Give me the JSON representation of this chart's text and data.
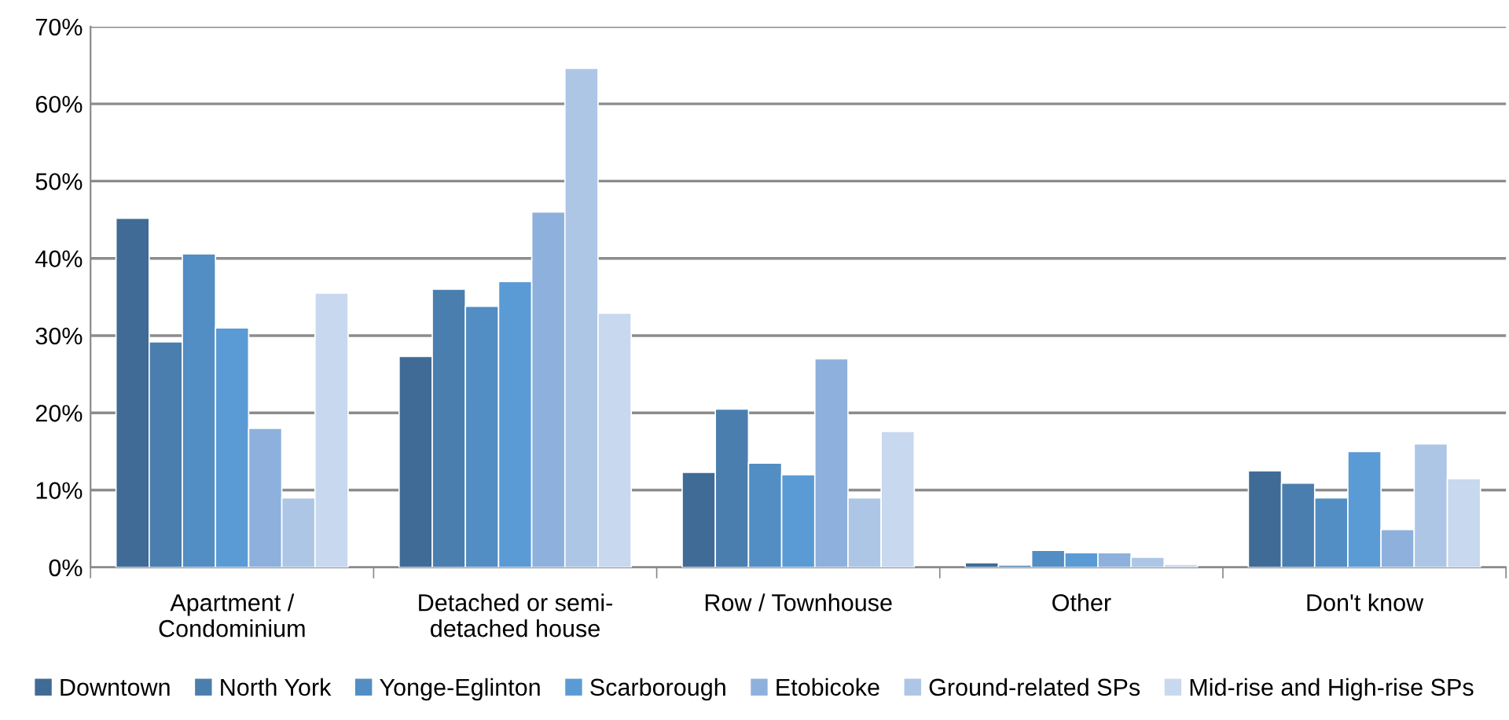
{
  "chart_data": {
    "type": "bar",
    "categories": [
      "Apartment /\nCondominium",
      "Detached or semi-\ndetached house",
      "Row / Townhouse",
      "Other",
      "Don't know"
    ],
    "series": [
      {
        "name": "Downtown",
        "color": "#3f6b96",
        "values": [
          45.2,
          27.3,
          12.3,
          0.6,
          12.5
        ]
      },
      {
        "name": "North York",
        "color": "#4a7eaf",
        "values": [
          29.2,
          36,
          20.5,
          0.3,
          10.9
        ]
      },
      {
        "name": "Yonge-Eglinton",
        "color": "#528dc3",
        "values": [
          40.6,
          33.8,
          13.5,
          2.2,
          9
        ]
      },
      {
        "name": "Scarborough",
        "color": "#5b9bd5",
        "values": [
          31,
          37,
          12,
          1.9,
          15
        ]
      },
      {
        "name": "Etobicoke",
        "color": "#8db1dc",
        "values": [
          18,
          46,
          27,
          1.9,
          4.9
        ]
      },
      {
        "name": "Ground-related SPs",
        "color": "#adc6e6",
        "values": [
          9,
          64.6,
          9,
          1.3,
          16
        ]
      },
      {
        "name": "Mid-rise and High-rise SPs",
        "color": "#c8d8ee",
        "values": [
          35.5,
          32.9,
          17.6,
          0.4,
          11.5
        ]
      }
    ],
    "ylim": [
      0,
      70
    ],
    "yticks": [
      {
        "value": 0,
        "label": "0%"
      },
      {
        "value": 10,
        "label": "10%"
      },
      {
        "value": 20,
        "label": "20%"
      },
      {
        "value": 30,
        "label": "30%"
      },
      {
        "value": 40,
        "label": "40%"
      },
      {
        "value": 50,
        "label": "50%"
      },
      {
        "value": 60,
        "label": "60%"
      },
      {
        "value": 70,
        "label": "70%"
      }
    ],
    "grid": "y",
    "legend": "bottom"
  }
}
